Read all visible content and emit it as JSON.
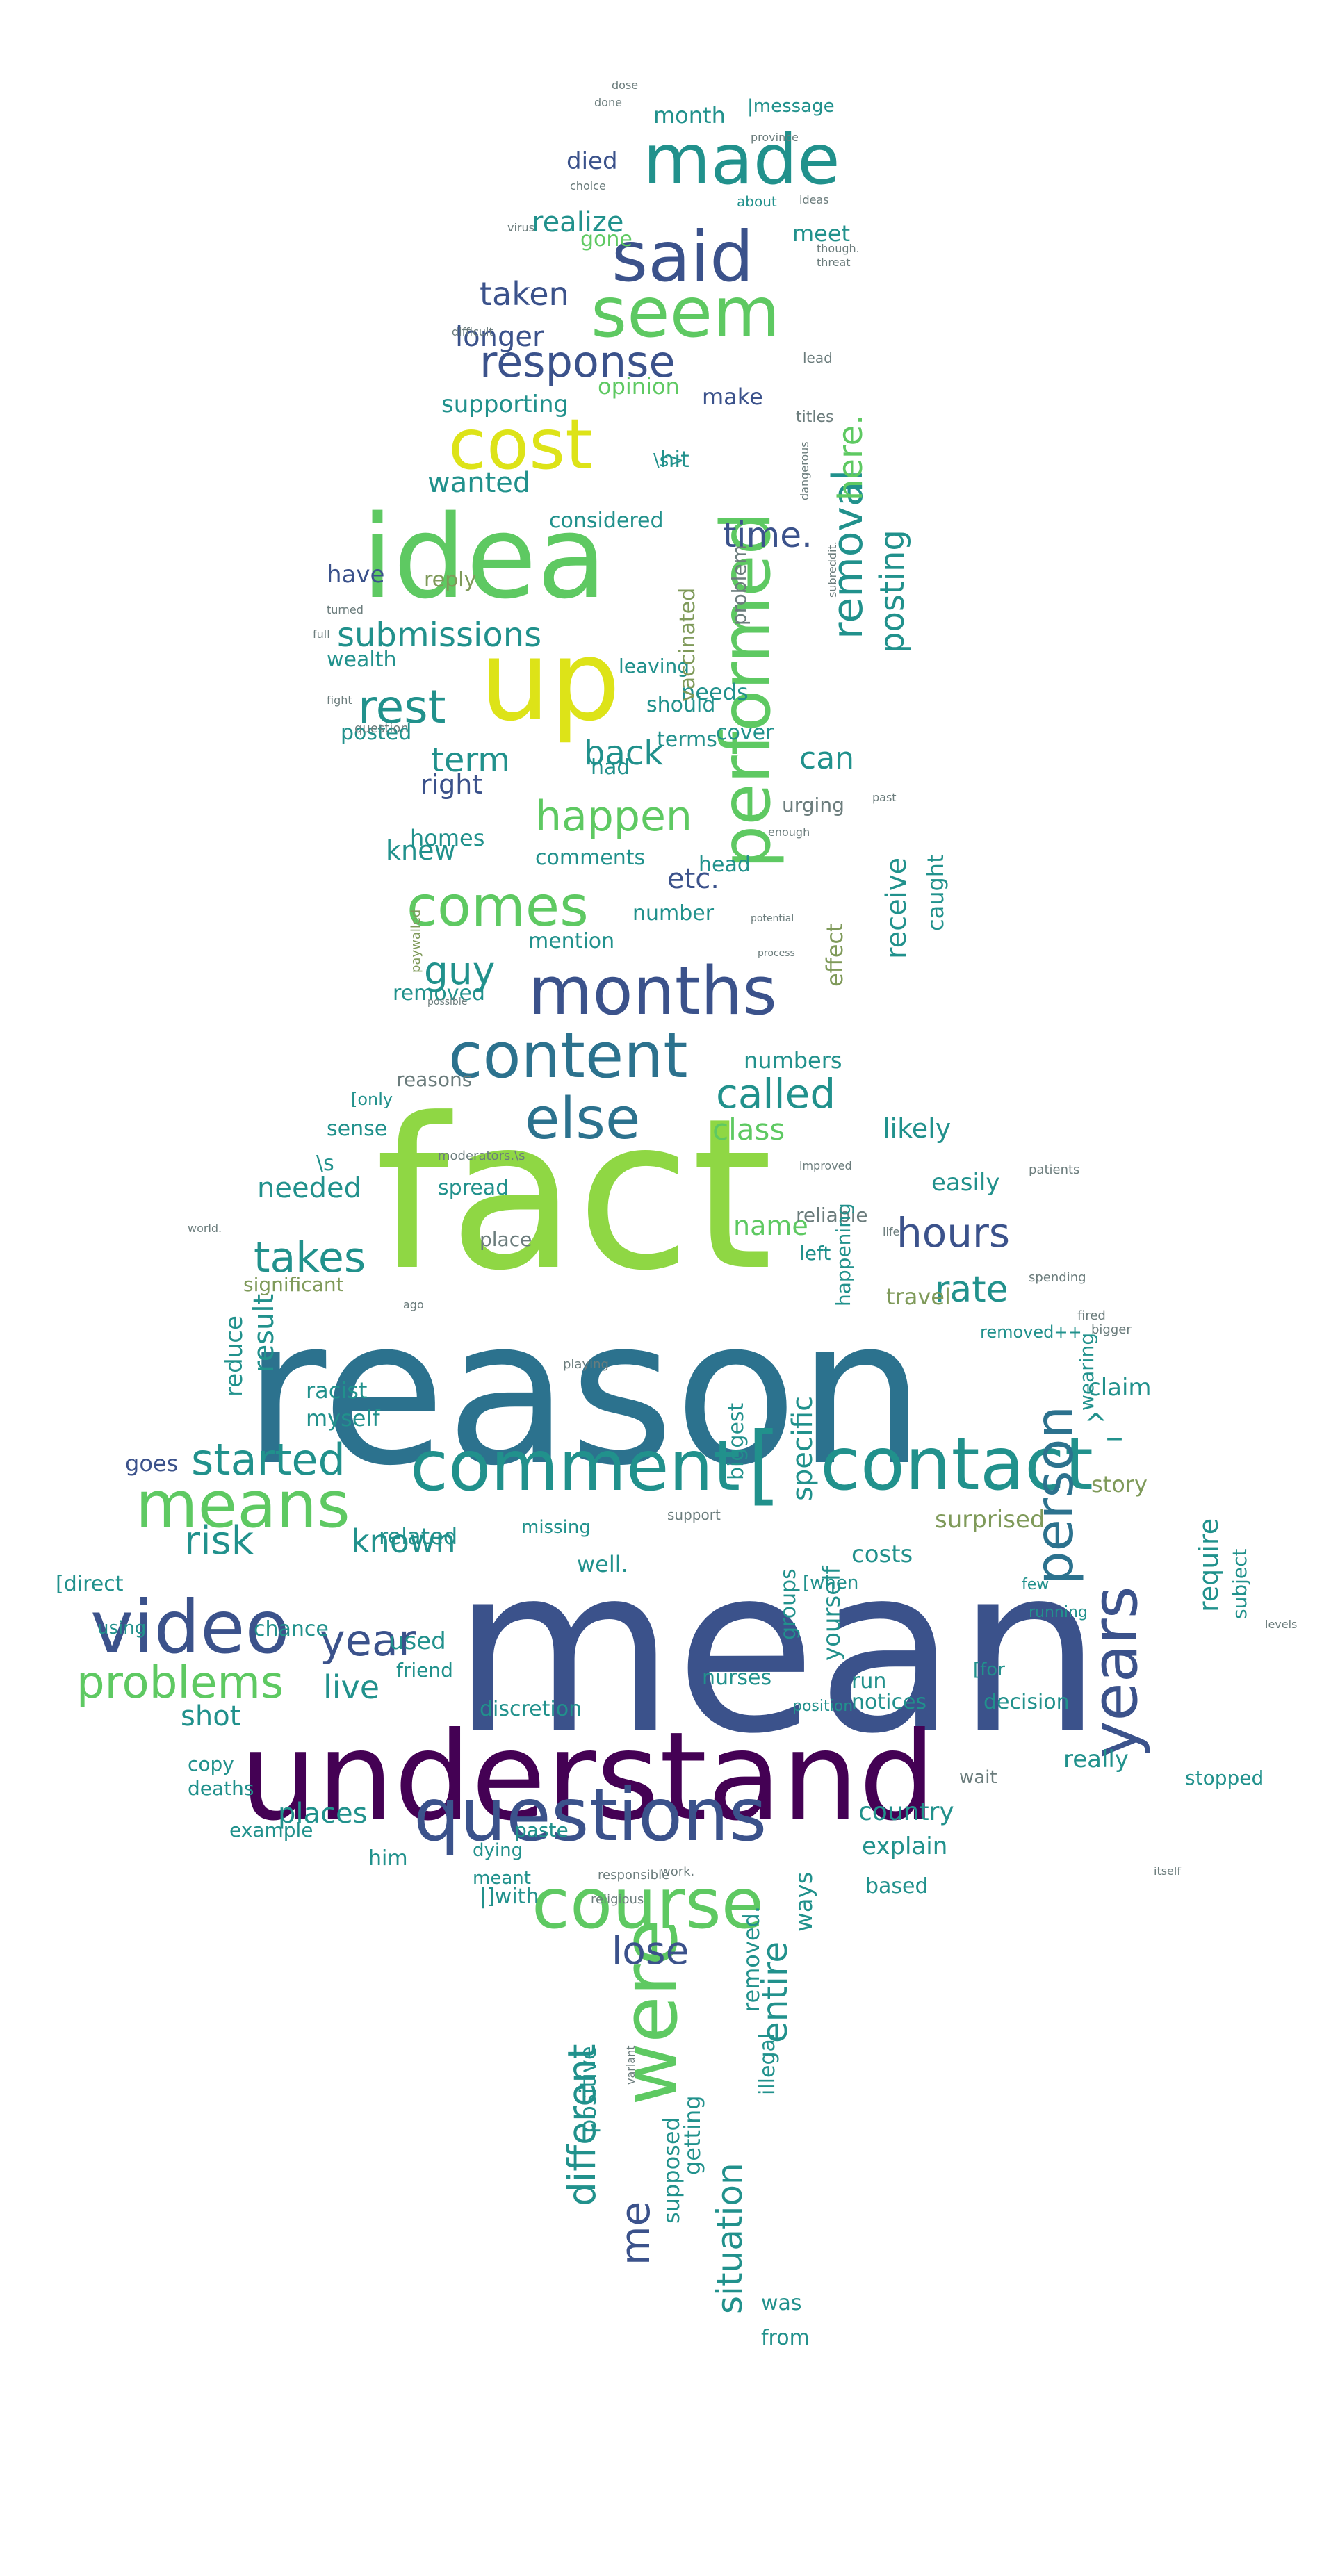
{
  "palette": {
    "background": "#ffffff",
    "yellow": "#dde318",
    "lime": "#8fd744",
    "green": "#5ec962",
    "sage": "#7f9a5a",
    "teal": "#21918c",
    "blue": "#2c728e",
    "indigo": "#3b528b",
    "purple": "#472d7b",
    "dark": "#440154",
    "grey": "#6b7c7c"
  },
  "words": [
    "mean",
    "reason",
    "fact",
    "understand",
    "idea",
    "up",
    "contact",
    "[",
    "comment",
    "video",
    "means",
    "questions",
    "course",
    "performed",
    "years",
    "were",
    "made",
    "said",
    "seem",
    "cost",
    "months",
    "content",
    "else",
    "comes",
    "happen",
    "response",
    "hours",
    "person",
    "takes",
    "problems",
    "started",
    "rest",
    "back",
    "removal",
    "here.",
    "posting",
    "submissions",
    "time.",
    "term",
    "called",
    "risk",
    "known",
    "year",
    "live",
    "guy",
    "different",
    "lose",
    "entire",
    "situation",
    "me",
    "rate",
    "taken",
    "longer",
    "realize",
    "died",
    "month",
    "gone",
    "meet",
    "supporting",
    "opinion",
    "make",
    "hit",
    "wanted",
    "considered",
    "have",
    "wealth",
    "posted",
    "right",
    "homes",
    "knew",
    "can",
    "etc.",
    "class",
    "name",
    "likely",
    "needed",
    "sense",
    "spread",
    "place",
    "easily",
    "left",
    "reliable",
    "travel",
    "claim",
    "wearing",
    "story",
    "surprised",
    "costs",
    "require",
    "subject",
    "country",
    "explain",
    "based",
    "places",
    "him",
    "really",
    "shot",
    "copy",
    "deaths",
    "example",
    "friend",
    "used",
    "chance",
    "using",
    "result",
    "reduce",
    "myself",
    "racist",
    "goes",
    "related",
    "well.",
    "positive",
    "illegal",
    "removed.",
    "from",
    "was",
    "supposed",
    "getting",
    "nurses",
    "yourself",
    "run",
    "decision",
    "notices",
    "discretion",
    "groups",
    "receive",
    "caught",
    "effect",
    "number",
    "mention",
    "removed",
    "comments",
    "head",
    "urging",
    "terms",
    "had",
    "cover",
    "needs",
    "should",
    "leaving",
    "problem",
    "reply",
    "vaccinated",
    "specific",
    "biggest",
    "numbers",
    "reasons",
    "^_",
    "[only",
    "\\s",
    "\\s>",
    "|message",
    "about",
    "ideas",
    "titles",
    "lead",
    "enough",
    "fight",
    "dying",
    "meant",
    "ways",
    "|]with",
    "stopped",
    "[direct",
    "[when",
    "[for",
    "happening",
    "paste",
    "playing",
    "bigger",
    "significant",
    "wait",
    "world.",
    "process",
    "potential",
    "possible",
    "paywalled",
    "improved",
    "patients",
    "missing",
    "support",
    "few",
    "running",
    "position",
    "spending",
    "question",
    "fired",
    "removed++",
    "levels",
    "done",
    "province",
    "choice",
    "virus",
    "difficult",
    "dangerous",
    "subreddit.",
    "though.",
    "threat",
    "ago",
    "life",
    "full",
    "turned",
    "dose",
    "past",
    "moderators.\\s",
    "responsible",
    "work.",
    "religious",
    "variant",
    "itself"
  ]
}
